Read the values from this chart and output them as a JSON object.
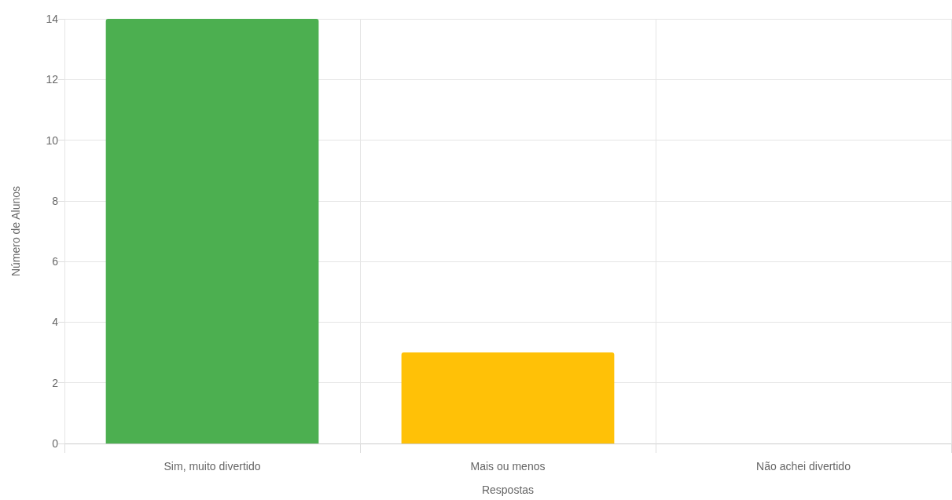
{
  "chart_data": {
    "type": "bar",
    "xlabel": "Respostas",
    "ylabel": "Número de Alunos",
    "categories": [
      "Sim, muito divertido",
      "Mais ou menos",
      "Não achei divertido"
    ],
    "values": [
      14,
      3,
      0
    ],
    "colors": [
      "#4caf50",
      "#ffc107",
      "#f44336"
    ],
    "ylim": [
      0,
      14
    ],
    "yticks": [
      0,
      2,
      4,
      6,
      8,
      10,
      12,
      14
    ],
    "grid": true
  }
}
